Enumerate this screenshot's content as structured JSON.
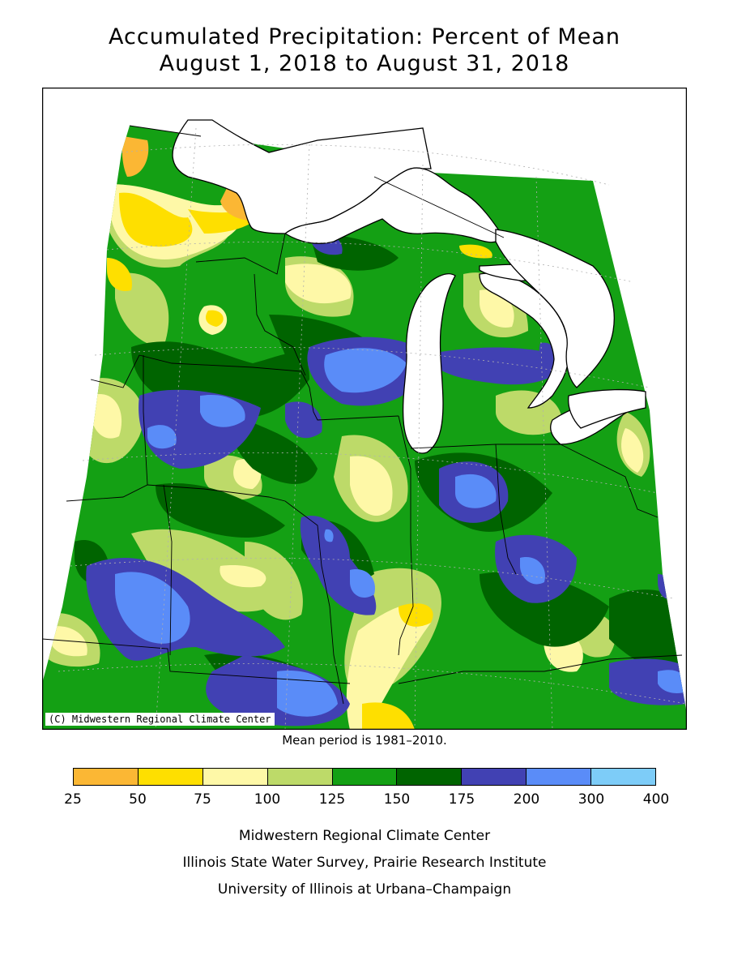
{
  "title": {
    "line1": "Accumulated Precipitation: Percent of Mean",
    "line2": "August 1, 2018 to August 31, 2018"
  },
  "map": {
    "copyright": "(C) Midwestern Regional Climate Center",
    "mean_period": "Mean period is 1981–2010."
  },
  "legend": {
    "ticks": [
      "25",
      "50",
      "75",
      "100",
      "125",
      "150",
      "175",
      "200",
      "300",
      "400"
    ],
    "colors": [
      "#FBB734",
      "#FEDF00",
      "#FEF8A7",
      "#BDDA69",
      "#14A014",
      "#006400",
      "#4141B3",
      "#5A8CF8",
      "#7DCCF8"
    ]
  },
  "credits": {
    "line1": "Midwestern Regional Climate Center",
    "line2": "Illinois State Water Survey, Prairie Research Institute",
    "line3": "University of Illinois at Urbana–Champaign"
  }
}
